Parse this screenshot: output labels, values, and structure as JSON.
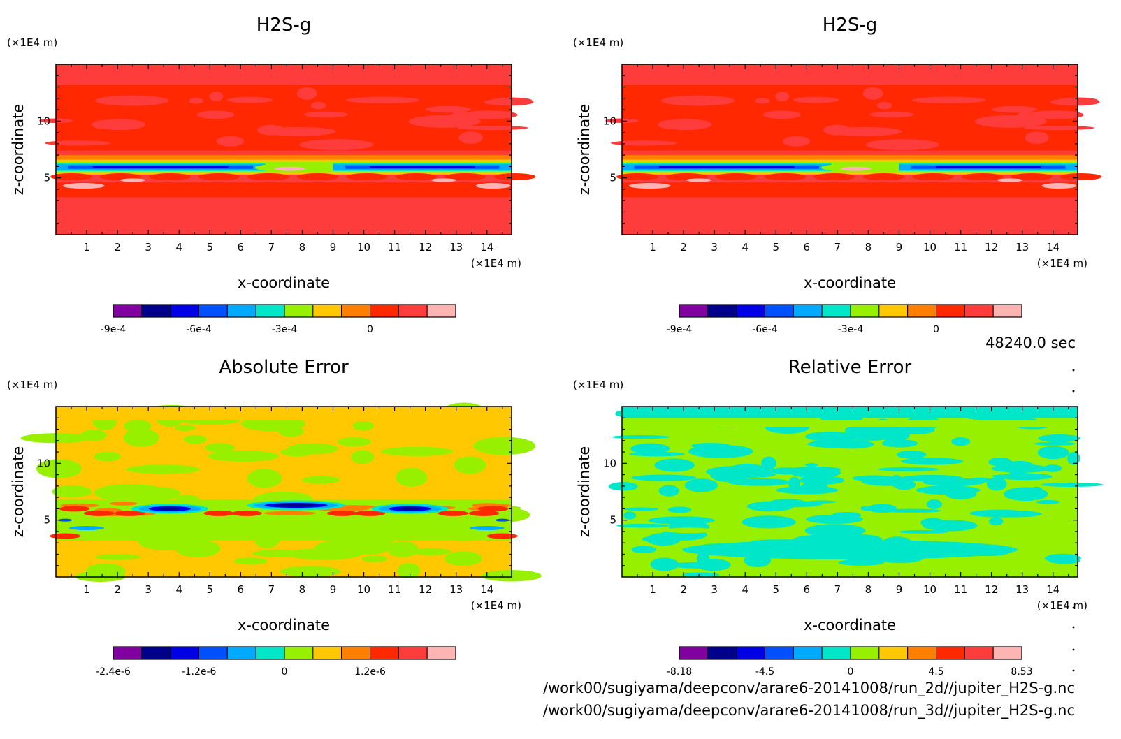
{
  "time_label": "48240.0 sec",
  "files": [
    "/work00/sugiyama/deepconv/arare6-20141008/run_2d//jupiter_H2S-g.nc",
    "/work00/sugiyama/deepconv/arare6-20141008/run_3d//jupiter_H2S-g.nc"
  ],
  "palette": [
    "#8000a0",
    "#00008c",
    "#0000e6",
    "#0050ff",
    "#00aaff",
    "#00e6c8",
    "#96f000",
    "#ffc800",
    "#ff8000",
    "#ff2800",
    "#ff3c3c",
    "#ffb4b4"
  ],
  "chart_data": [
    {
      "type": "heatmap",
      "title": "H2S-g",
      "xlabel": "x-coordinate",
      "ylabel": "z-coordinate",
      "x_unit": "(×1E4 m)",
      "y_unit": "(×1E4 m)",
      "xlim": [
        0,
        14.8
      ],
      "ylim": [
        0,
        15
      ],
      "x_ticks": [
        1,
        2,
        3,
        4,
        5,
        6,
        7,
        8,
        9,
        10,
        11,
        12,
        13,
        14
      ],
      "y_ticks": [
        5,
        10
      ],
      "background_level": 10,
      "colorbar": {
        "levels": 12,
        "ticks": [
          {
            "index": 0,
            "label": "-9e-4"
          },
          {
            "index": 3,
            "label": "-6e-4"
          },
          {
            "index": 6,
            "label": "-3e-4"
          },
          {
            "index": 9,
            "label": "0"
          }
        ]
      }
    },
    {
      "type": "heatmap",
      "title": "H2S-g",
      "xlabel": "x-coordinate",
      "ylabel": "z-coordinate",
      "x_unit": "(×1E4 m)",
      "y_unit": "(×1E4 m)",
      "xlim": [
        0,
        14.8
      ],
      "ylim": [
        0,
        15
      ],
      "x_ticks": [
        1,
        2,
        3,
        4,
        5,
        6,
        7,
        8,
        9,
        10,
        11,
        12,
        13,
        14
      ],
      "y_ticks": [
        5,
        10
      ],
      "background_level": 10,
      "colorbar": {
        "levels": 12,
        "ticks": [
          {
            "index": 0,
            "label": "-9e-4"
          },
          {
            "index": 3,
            "label": "-6e-4"
          },
          {
            "index": 6,
            "label": "-3e-4"
          },
          {
            "index": 9,
            "label": "0"
          }
        ]
      }
    },
    {
      "type": "heatmap",
      "title": "Absolute Error",
      "xlabel": "x-coordinate",
      "ylabel": "z-coordinate",
      "x_unit": "(×1E4 m)",
      "y_unit": "(×1E4 m)",
      "xlim": [
        0,
        14.8
      ],
      "ylim": [
        0,
        15
      ],
      "x_ticks": [
        1,
        2,
        3,
        4,
        5,
        6,
        7,
        8,
        9,
        10,
        11,
        12,
        13,
        14
      ],
      "y_ticks": [
        5,
        10
      ],
      "background_level": 7,
      "colorbar": {
        "levels": 12,
        "ticks": [
          {
            "index": 0,
            "label": "-2.4e-6"
          },
          {
            "index": 3,
            "label": "-1.2e-6"
          },
          {
            "index": 6,
            "label": "0"
          },
          {
            "index": 9,
            "label": "1.2e-6"
          }
        ]
      }
    },
    {
      "type": "heatmap",
      "title": "Relative Error",
      "xlabel": "x-coordinate",
      "ylabel": "z-coordinate",
      "x_unit": "(×1E4 m)",
      "y_unit": "(×1E4 m)",
      "xlim": [
        0,
        14.8
      ],
      "ylim": [
        0,
        15
      ],
      "x_ticks": [
        1,
        2,
        3,
        4,
        5,
        6,
        7,
        8,
        9,
        10,
        11,
        12,
        13,
        14
      ],
      "y_ticks": [
        5,
        10
      ],
      "background_level": 6,
      "colorbar": {
        "levels": 12,
        "ticks": [
          {
            "index": 0,
            "label": "-8.18"
          },
          {
            "index": 3,
            "label": "-4.5"
          },
          {
            "index": 6,
            "label": "0"
          },
          {
            "index": 9,
            "label": "4.5"
          },
          {
            "index": 12,
            "label": "8.53"
          }
        ]
      }
    }
  ]
}
